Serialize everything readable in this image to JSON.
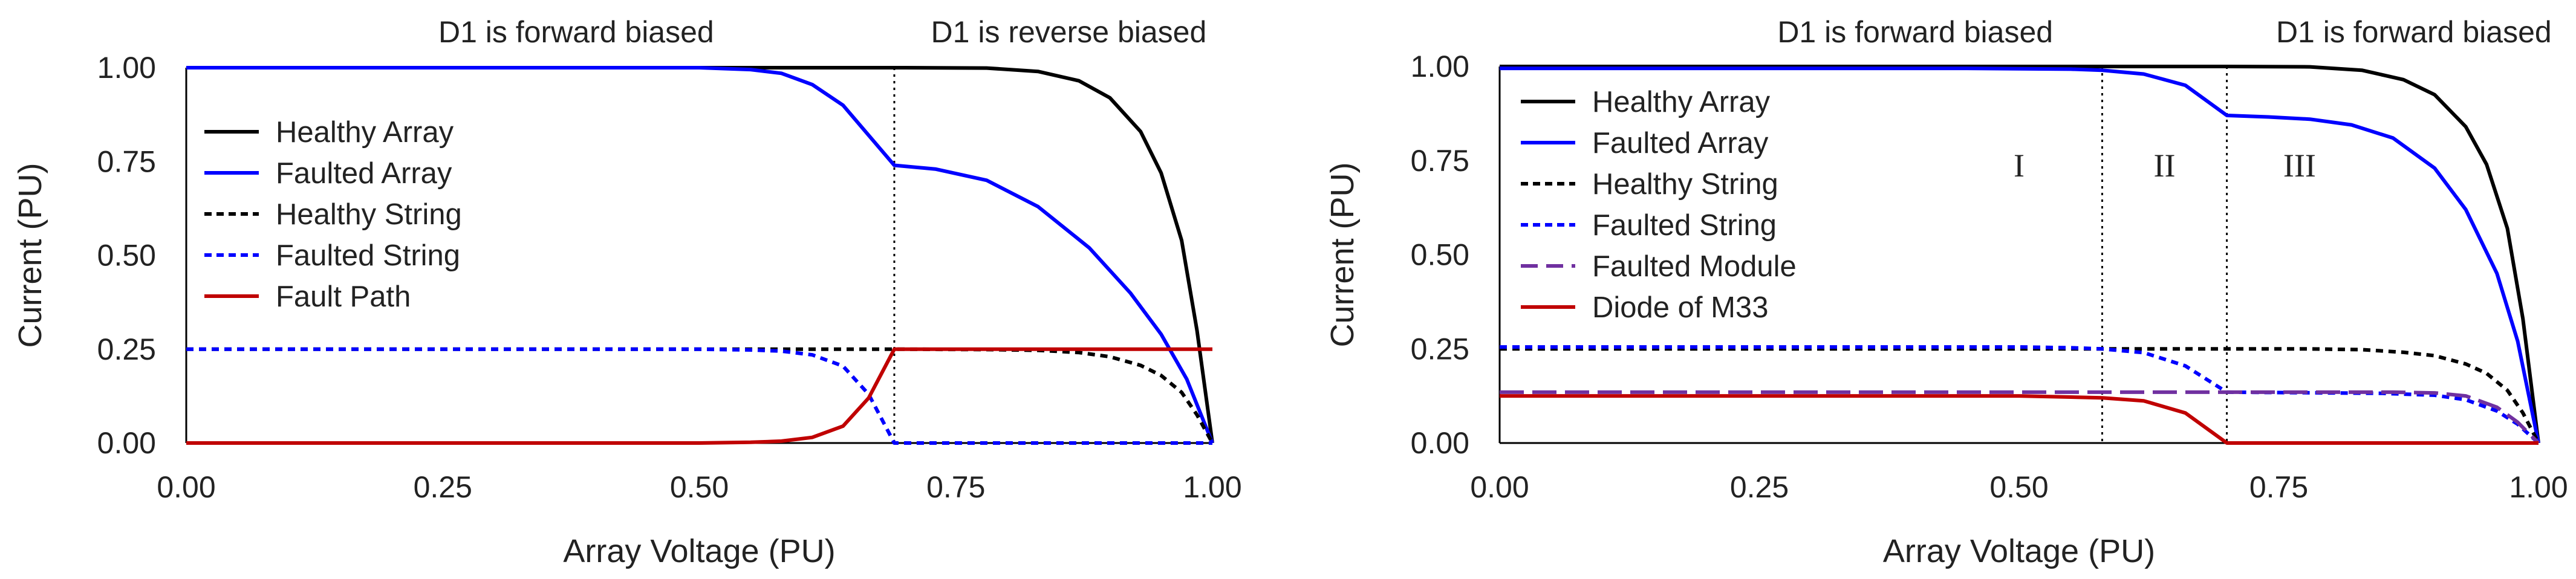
{
  "chart_data": [
    {
      "type": "line",
      "title": "",
      "xlabel": "Array Voltage  (PU)",
      "ylabel": "Current  (PU)",
      "xlim": [
        0,
        1
      ],
      "ylim": [
        0,
        1
      ],
      "grid": false,
      "x_ticks": [
        "0.00",
        "0.25",
        "0.50",
        "0.75",
        "1.00"
      ],
      "y_ticks": [
        "0.00",
        "0.25",
        "0.50",
        "0.75",
        "1.00"
      ],
      "legend_position": "left",
      "annotations": [
        {
          "text": "D1 is forward biased",
          "x": 0.38
        },
        {
          "text": "D1 is reverse biased",
          "x": 0.86
        }
      ],
      "vlines": [
        0.69
      ],
      "series": [
        {
          "name": "Healthy Array",
          "color": "#000000",
          "dash": "solid",
          "points": [
            [
              0,
              1
            ],
            [
              0.6,
              1
            ],
            [
              0.7,
              1
            ],
            [
              0.78,
              0.999
            ],
            [
              0.83,
              0.99
            ],
            [
              0.87,
              0.965
            ],
            [
              0.9,
              0.92
            ],
            [
              0.93,
              0.83
            ],
            [
              0.95,
              0.72
            ],
            [
              0.97,
              0.54
            ],
            [
              0.985,
              0.3
            ],
            [
              1.0,
              0
            ]
          ]
        },
        {
          "name": "Faulted Array",
          "color": "#0000ff",
          "dash": "solid",
          "points": [
            [
              0,
              1
            ],
            [
              0.5,
              1
            ],
            [
              0.55,
              0.995
            ],
            [
              0.58,
              0.985
            ],
            [
              0.61,
              0.955
            ],
            [
              0.64,
              0.9
            ],
            [
              0.665,
              0.82
            ],
            [
              0.69,
              0.74
            ],
            [
              0.73,
              0.73
            ],
            [
              0.78,
              0.7
            ],
            [
              0.83,
              0.63
            ],
            [
              0.88,
              0.52
            ],
            [
              0.92,
              0.4
            ],
            [
              0.95,
              0.29
            ],
            [
              0.975,
              0.17
            ],
            [
              1.0,
              0
            ]
          ]
        },
        {
          "name": "Healthy String",
          "color": "#000000",
          "dash": "dashed",
          "points": [
            [
              0,
              0.25
            ],
            [
              0.6,
              0.25
            ],
            [
              0.7,
              0.25
            ],
            [
              0.78,
              0.249
            ],
            [
              0.83,
              0.247
            ],
            [
              0.87,
              0.241
            ],
            [
              0.9,
              0.23
            ],
            [
              0.93,
              0.207
            ],
            [
              0.95,
              0.18
            ],
            [
              0.97,
              0.135
            ],
            [
              0.985,
              0.075
            ],
            [
              1.0,
              0
            ]
          ]
        },
        {
          "name": "Faulted String",
          "color": "#0000ff",
          "dash": "dashed",
          "points": [
            [
              0,
              0.25
            ],
            [
              0.5,
              0.25
            ],
            [
              0.55,
              0.248
            ],
            [
              0.58,
              0.245
            ],
            [
              0.61,
              0.235
            ],
            [
              0.64,
              0.205
            ],
            [
              0.665,
              0.13
            ],
            [
              0.69,
              0
            ],
            [
              1.0,
              0
            ]
          ]
        },
        {
          "name": "Fault Path",
          "color": "#c00000",
          "dash": "solid",
          "points": [
            [
              0,
              0
            ],
            [
              0.5,
              0
            ],
            [
              0.55,
              0.002
            ],
            [
              0.58,
              0.005
            ],
            [
              0.61,
              0.015
            ],
            [
              0.64,
              0.045
            ],
            [
              0.665,
              0.12
            ],
            [
              0.69,
              0.25
            ],
            [
              1.0,
              0.25
            ]
          ]
        }
      ]
    },
    {
      "type": "line",
      "title": "",
      "xlabel": "Array Voltage  (PU)",
      "ylabel": "Current  (PU)",
      "xlim": [
        0,
        1
      ],
      "ylim": [
        0,
        1
      ],
      "grid": false,
      "x_ticks": [
        "0.00",
        "0.25",
        "0.50",
        "0.75",
        "1.00"
      ],
      "y_ticks": [
        "0.00",
        "0.25",
        "0.50",
        "0.75",
        "1.00"
      ],
      "legend_position": "left",
      "annotations": [
        {
          "text": "D1 is forward biased",
          "x": 0.4
        },
        {
          "text": "D1 is forward biased",
          "x": 0.88
        }
      ],
      "vlines": [
        0.58,
        0.7
      ],
      "regions": [
        {
          "label": "I",
          "x": 0.5
        },
        {
          "label": "II",
          "x": 0.64
        },
        {
          "label": "III",
          "x": 0.77
        }
      ],
      "series": [
        {
          "name": "Healthy Array",
          "color": "#000000",
          "dash": "solid",
          "points": [
            [
              0,
              1
            ],
            [
              0.7,
              1
            ],
            [
              0.78,
              0.999
            ],
            [
              0.83,
              0.99
            ],
            [
              0.87,
              0.965
            ],
            [
              0.9,
              0.925
            ],
            [
              0.93,
              0.84
            ],
            [
              0.95,
              0.74
            ],
            [
              0.97,
              0.57
            ],
            [
              0.985,
              0.33
            ],
            [
              1.0,
              0
            ]
          ]
        },
        {
          "name": "Faulted Array",
          "color": "#0000ff",
          "dash": "solid",
          "points": [
            [
              0,
              0.995
            ],
            [
              0.45,
              0.995
            ],
            [
              0.55,
              0.993
            ],
            [
              0.58,
              0.99
            ],
            [
              0.62,
              0.98
            ],
            [
              0.66,
              0.95
            ],
            [
              0.7,
              0.87
            ],
            [
              0.74,
              0.866
            ],
            [
              0.78,
              0.86
            ],
            [
              0.82,
              0.845
            ],
            [
              0.86,
              0.81
            ],
            [
              0.9,
              0.73
            ],
            [
              0.93,
              0.62
            ],
            [
              0.96,
              0.45
            ],
            [
              0.98,
              0.27
            ],
            [
              1.0,
              0
            ]
          ]
        },
        {
          "name": "Healthy String",
          "color": "#000000",
          "dash": "dashed",
          "points": [
            [
              0,
              0.25
            ],
            [
              0.7,
              0.25
            ],
            [
              0.78,
              0.25
            ],
            [
              0.83,
              0.248
            ],
            [
              0.87,
              0.241
            ],
            [
              0.9,
              0.232
            ],
            [
              0.93,
              0.21
            ],
            [
              0.95,
              0.185
            ],
            [
              0.97,
              0.14
            ],
            [
              0.985,
              0.08
            ],
            [
              1.0,
              0
            ]
          ]
        },
        {
          "name": "Faulted String",
          "color": "#0000ff",
          "dash": "dashed",
          "points": [
            [
              0,
              0.255
            ],
            [
              0.5,
              0.255
            ],
            [
              0.55,
              0.253
            ],
            [
              0.58,
              0.25
            ],
            [
              0.62,
              0.24
            ],
            [
              0.66,
              0.205
            ],
            [
              0.7,
              0.135
            ],
            [
              0.75,
              0.134
            ],
            [
              0.8,
              0.133
            ],
            [
              0.85,
              0.132
            ],
            [
              0.9,
              0.127
            ],
            [
              0.93,
              0.115
            ],
            [
              0.96,
              0.085
            ],
            [
              0.98,
              0.05
            ],
            [
              1.0,
              0
            ]
          ]
        },
        {
          "name": "Faulted Module",
          "color": "#7030a0",
          "dash": "longdash",
          "points": [
            [
              0,
              0.135
            ],
            [
              0.6,
              0.135
            ],
            [
              0.7,
              0.135
            ],
            [
              0.8,
              0.135
            ],
            [
              0.86,
              0.135
            ],
            [
              0.9,
              0.133
            ],
            [
              0.93,
              0.125
            ],
            [
              0.96,
              0.095
            ],
            [
              0.98,
              0.055
            ],
            [
              1.0,
              0
            ]
          ]
        },
        {
          "name": "Diode of M33",
          "color": "#c00000",
          "dash": "solid",
          "points": [
            [
              0,
              0.125
            ],
            [
              0.5,
              0.125
            ],
            [
              0.55,
              0.122
            ],
            [
              0.58,
              0.12
            ],
            [
              0.62,
              0.112
            ],
            [
              0.66,
              0.08
            ],
            [
              0.7,
              0
            ],
            [
              1.0,
              0
            ]
          ]
        }
      ]
    }
  ]
}
